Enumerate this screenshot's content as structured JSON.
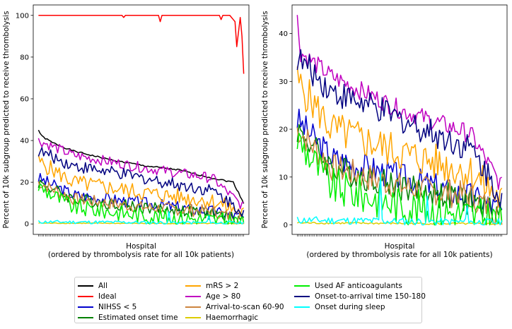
{
  "chart_data": [
    {
      "type": "line",
      "xlabel": "Hospital\n(ordered by thrombolysis rate for all 10k patients)",
      "ylabel": "Percent of 10k subgroup predicted to receive thrombolysis",
      "xlim": [
        -3,
        121
      ],
      "ylim": [
        -5,
        105
      ],
      "yticks": [
        0,
        20,
        40,
        60,
        80,
        100
      ],
      "n_hospitals": 119,
      "series": [
        {
          "name": "All",
          "color": "#000000",
          "keys": [
            [
              0,
              45
            ],
            [
              2,
              42
            ],
            [
              8,
              39
            ],
            [
              20,
              35
            ],
            [
              40,
              31
            ],
            [
              60,
              28
            ],
            [
              80,
              26
            ],
            [
              100,
              22
            ],
            [
              112,
              20
            ],
            [
              118,
              10
            ]
          ],
          "noise": 0.4,
          "seed": 1
        },
        {
          "name": "Ideal",
          "color": "#ff0000",
          "keys": [
            [
              0,
              100
            ],
            [
              110,
              100
            ],
            [
              113,
              97
            ],
            [
              114,
              85
            ],
            [
              116,
              99
            ],
            [
              117,
              90
            ],
            [
              118,
              72
            ]
          ],
          "noise": 0,
          "seed": 2,
          "dips": [
            [
              49,
              99
            ],
            [
              70,
              97
            ],
            [
              105,
              98
            ]
          ]
        },
        {
          "name": "NIHSS < 5",
          "color": "#0000cd",
          "keys": [
            [
              0,
              22
            ],
            [
              20,
              14
            ],
            [
              60,
              10
            ],
            [
              100,
              6
            ],
            [
              118,
              3
            ]
          ],
          "noise": 3,
          "seed": 3
        },
        {
          "name": "Estimated onset time",
          "color": "#008000",
          "keys": [
            [
              0,
              20
            ],
            [
              20,
              12
            ],
            [
              60,
              8
            ],
            [
              100,
              5
            ],
            [
              118,
              2
            ]
          ],
          "noise": 3,
          "seed": 4
        },
        {
          "name": "mRS > 2",
          "color": "#ffa500",
          "keys": [
            [
              0,
              30
            ],
            [
              20,
              20
            ],
            [
              60,
              15
            ],
            [
              100,
              11
            ],
            [
              118,
              5
            ]
          ],
          "noise": 4,
          "seed": 5
        },
        {
          "name": "Age > 80",
          "color": "#c000c0",
          "keys": [
            [
              0,
              40
            ],
            [
              20,
              33
            ],
            [
              60,
              27
            ],
            [
              100,
              22
            ],
            [
              118,
              8
            ]
          ],
          "noise": 2.5,
          "seed": 6
        },
        {
          "name": "Arrival-to-scan 60-90",
          "color": "#cd853f",
          "keys": [
            [
              0,
              20
            ],
            [
              20,
              12
            ],
            [
              60,
              8
            ],
            [
              100,
              6
            ],
            [
              118,
              2
            ]
          ],
          "noise": 3,
          "seed": 7
        },
        {
          "name": "Haemorrhagic",
          "color": "#dccd00",
          "keys": [
            [
              0,
              0.4
            ],
            [
              118,
              0.2
            ]
          ],
          "noise": 0.2,
          "seed": 8
        },
        {
          "name": "Used AF anticoagulants",
          "color": "#00ee00",
          "keys": [
            [
              0,
              18
            ],
            [
              20,
              8
            ],
            [
              60,
              4
            ],
            [
              100,
              2
            ],
            [
              118,
              1
            ]
          ],
          "noise": 4,
          "seed": 9
        },
        {
          "name": "Onset-to-arrival time 150-180",
          "color": "#000080",
          "keys": [
            [
              0,
              35
            ],
            [
              20,
              28
            ],
            [
              60,
              22
            ],
            [
              100,
              16
            ],
            [
              118,
              6
            ]
          ],
          "noise": 3,
          "seed": 10
        },
        {
          "name": "Onset during sleep",
          "color": "#00ffff",
          "keys": [
            [
              0,
              1
            ],
            [
              118,
              0.5
            ]
          ],
          "noise": 0.8,
          "seed": 11,
          "spikes": [
            [
              75,
              6
            ],
            [
              98,
              4
            ]
          ]
        }
      ]
    },
    {
      "type": "line",
      "xlabel": "Hospital\n(ordered by thrombolysis rate for all 10k patients)",
      "ylabel": "Percent of 10k subgroup predicted to receive thrombolysis",
      "xlim": [
        -3,
        121
      ],
      "ylim": [
        -2,
        46
      ],
      "yticks": [
        0,
        10,
        20,
        30,
        40
      ],
      "n_hospitals": 119,
      "series": [
        {
          "name": "NIHSS < 5",
          "color": "#0000cd",
          "keys": [
            [
              0,
              22
            ],
            [
              20,
              14
            ],
            [
              60,
              10
            ],
            [
              100,
              6
            ],
            [
              118,
              3
            ]
          ],
          "noise": 3,
          "seed": 3
        },
        {
          "name": "Estimated onset time",
          "color": "#008000",
          "keys": [
            [
              0,
              20
            ],
            [
              20,
              12
            ],
            [
              60,
              8
            ],
            [
              100,
              5
            ],
            [
              118,
              2
            ]
          ],
          "noise": 3,
          "seed": 4
        },
        {
          "name": "mRS > 2",
          "color": "#ffa500",
          "keys": [
            [
              0,
              30
            ],
            [
              20,
              20
            ],
            [
              60,
              15
            ],
            [
              100,
              11
            ],
            [
              118,
              5
            ]
          ],
          "noise": 4,
          "seed": 5
        },
        {
          "name": "Age > 80",
          "color": "#c000c0",
          "keys": [
            [
              0,
              43
            ],
            [
              2,
              36
            ],
            [
              20,
              31
            ],
            [
              60,
              24
            ],
            [
              100,
              19
            ],
            [
              118,
              8
            ]
          ],
          "noise": 2,
          "seed": 6
        },
        {
          "name": "Arrival-to-scan 60-90",
          "color": "#cd853f",
          "keys": [
            [
              0,
              20
            ],
            [
              20,
              12
            ],
            [
              60,
              8
            ],
            [
              100,
              6
            ],
            [
              118,
              2
            ]
          ],
          "noise": 3,
          "seed": 7
        },
        {
          "name": "Haemorrhagic",
          "color": "#dccd00",
          "keys": [
            [
              0,
              0.4
            ],
            [
              118,
              0.2
            ]
          ],
          "noise": 0.2,
          "seed": 8
        },
        {
          "name": "Used AF anticoagulants",
          "color": "#00ee00",
          "keys": [
            [
              0,
              18
            ],
            [
              20,
              8
            ],
            [
              60,
              4
            ],
            [
              100,
              2
            ],
            [
              118,
              1
            ]
          ],
          "noise": 4,
          "seed": 9
        },
        {
          "name": "Onset-to-arrival time 150-180",
          "color": "#000080",
          "keys": [
            [
              0,
              35
            ],
            [
              20,
              28
            ],
            [
              60,
              22
            ],
            [
              100,
              16
            ],
            [
              118,
              6
            ]
          ],
          "noise": 3,
          "seed": 10
        },
        {
          "name": "Onset during sleep",
          "color": "#00ffff",
          "keys": [
            [
              0,
              1
            ],
            [
              118,
              0.5
            ]
          ],
          "noise": 0.8,
          "seed": 11,
          "spikes": [
            [
              48,
              11
            ],
            [
              75,
              6
            ],
            [
              98,
              4
            ]
          ]
        }
      ]
    }
  ],
  "legend": {
    "placement": "bottom-center",
    "entries": [
      {
        "name": "All",
        "color": "#000000"
      },
      {
        "name": "Ideal",
        "color": "#ff0000"
      },
      {
        "name": "NIHSS < 5",
        "color": "#0000cd"
      },
      {
        "name": "Estimated onset time",
        "color": "#008000"
      },
      {
        "name": "mRS > 2",
        "color": "#ffa500"
      },
      {
        "name": "Age > 80",
        "color": "#c000c0"
      },
      {
        "name": "Arrival-to-scan 60-90",
        "color": "#cd853f"
      },
      {
        "name": "Haemorrhagic",
        "color": "#dccd00"
      },
      {
        "name": "Used AF anticoagulants",
        "color": "#00ee00"
      },
      {
        "name": "Onset-to-arrival time 150-180",
        "color": "#000080"
      },
      {
        "name": "Onset during sleep",
        "color": "#00ffff"
      }
    ]
  }
}
